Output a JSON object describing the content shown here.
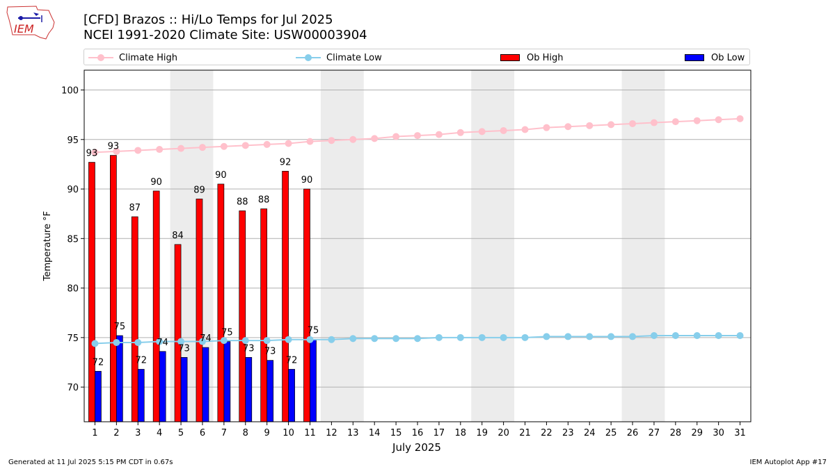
{
  "header": {
    "logo_text": "IEM",
    "title_line1": "[CFD] Brazos :: Hi/Lo Temps for Jul 2025",
    "title_line2": "NCEI 1991-2020 Climate Site: USW00003904"
  },
  "legend": {
    "climate_high": "Climate High",
    "climate_low": "Climate Low",
    "ob_high": "Ob High",
    "ob_low": "Ob Low"
  },
  "colors": {
    "climate_high": "#ffc0cb",
    "climate_low": "#87ceeb",
    "ob_high": "#ff0000",
    "ob_low": "#0000ff",
    "weekend": "#ececec",
    "grid": "#b0b0b0"
  },
  "footer": {
    "generated": "Generated at 11 Jul 2025 5:15 PM CDT in 0.67s",
    "app": "IEM Autoplot App #17"
  },
  "chart_data": {
    "type": "bar",
    "xlabel": "July 2025",
    "ylabel": "Temperature °F",
    "ylim": [
      66.5,
      102
    ],
    "yticks": [
      70,
      75,
      80,
      85,
      90,
      95,
      100
    ],
    "grid": true,
    "legend_position": "top",
    "days": [
      1,
      2,
      3,
      4,
      5,
      6,
      7,
      8,
      9,
      10,
      11,
      12,
      13,
      14,
      15,
      16,
      17,
      18,
      19,
      20,
      21,
      22,
      23,
      24,
      25,
      26,
      27,
      28,
      29,
      30,
      31
    ],
    "weekend_day_pairs": [
      [
        5,
        6
      ],
      [
        12,
        13
      ],
      [
        19,
        20
      ],
      [
        26,
        27
      ]
    ],
    "series": [
      {
        "name": "Ob High",
        "kind": "bar",
        "values": [
          92.7,
          93.4,
          87.2,
          89.8,
          84.4,
          89.0,
          90.5,
          87.8,
          88.0,
          91.8,
          90.0
        ],
        "labels": [
          "93",
          "93",
          "87",
          "90",
          "84",
          "89",
          "90",
          "88",
          "88",
          "92",
          "90"
        ]
      },
      {
        "name": "Ob Low",
        "kind": "bar",
        "values": [
          71.6,
          75.2,
          71.8,
          73.6,
          73.0,
          74.0,
          74.6,
          73.0,
          72.7,
          71.8,
          74.8
        ],
        "labels": [
          "72",
          "75",
          "72",
          "74",
          "73",
          "74",
          "75",
          "73",
          "73",
          "72",
          "75"
        ]
      },
      {
        "name": "Climate High",
        "kind": "line",
        "values": [
          93.7,
          93.8,
          93.9,
          94.0,
          94.1,
          94.2,
          94.3,
          94.4,
          94.5,
          94.6,
          94.8,
          94.9,
          95.0,
          95.1,
          95.3,
          95.4,
          95.5,
          95.7,
          95.8,
          95.9,
          96.0,
          96.2,
          96.3,
          96.4,
          96.5,
          96.6,
          96.7,
          96.8,
          96.9,
          97.0,
          97.1
        ]
      },
      {
        "name": "Climate Low",
        "kind": "line",
        "values": [
          74.4,
          74.5,
          74.5,
          74.6,
          74.6,
          74.6,
          74.7,
          74.7,
          74.7,
          74.8,
          74.8,
          74.8,
          74.9,
          74.9,
          74.9,
          74.9,
          75.0,
          75.0,
          75.0,
          75.0,
          75.0,
          75.1,
          75.1,
          75.1,
          75.1,
          75.1,
          75.2,
          75.2,
          75.2,
          75.2,
          75.2
        ]
      }
    ]
  }
}
